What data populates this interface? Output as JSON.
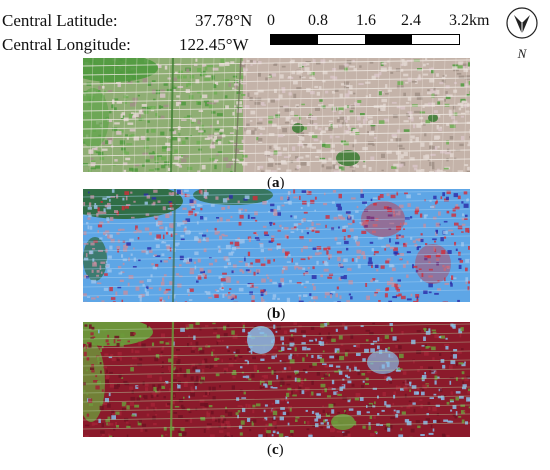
{
  "header": {
    "latitude_label": "Central Latitude:",
    "latitude_value": "37.78°N",
    "longitude_label": "Central Longitude:",
    "longitude_value": "122.45°W"
  },
  "scale_bar": {
    "ticks": [
      "0",
      "0.8",
      "1.6",
      "2.4",
      "3.2km"
    ],
    "pattern": [
      "dark",
      "light",
      "dark",
      "light"
    ]
  },
  "north_arrow": {
    "label": "N"
  },
  "panels": [
    {
      "id": "a",
      "caption": "a"
    },
    {
      "id": "b",
      "caption": "b"
    },
    {
      "id": "c",
      "caption": "c"
    }
  ],
  "colors": {
    "a_green": "#4f9a3e",
    "a_urban": "#c4b3a9",
    "b_blue": "#5ea6e6",
    "b_red": "#d22d3a",
    "b_green": "#2d6a3d",
    "c_red": "#8b1a2b",
    "c_green": "#6c9a3b",
    "c_blue": "#88bde8"
  }
}
